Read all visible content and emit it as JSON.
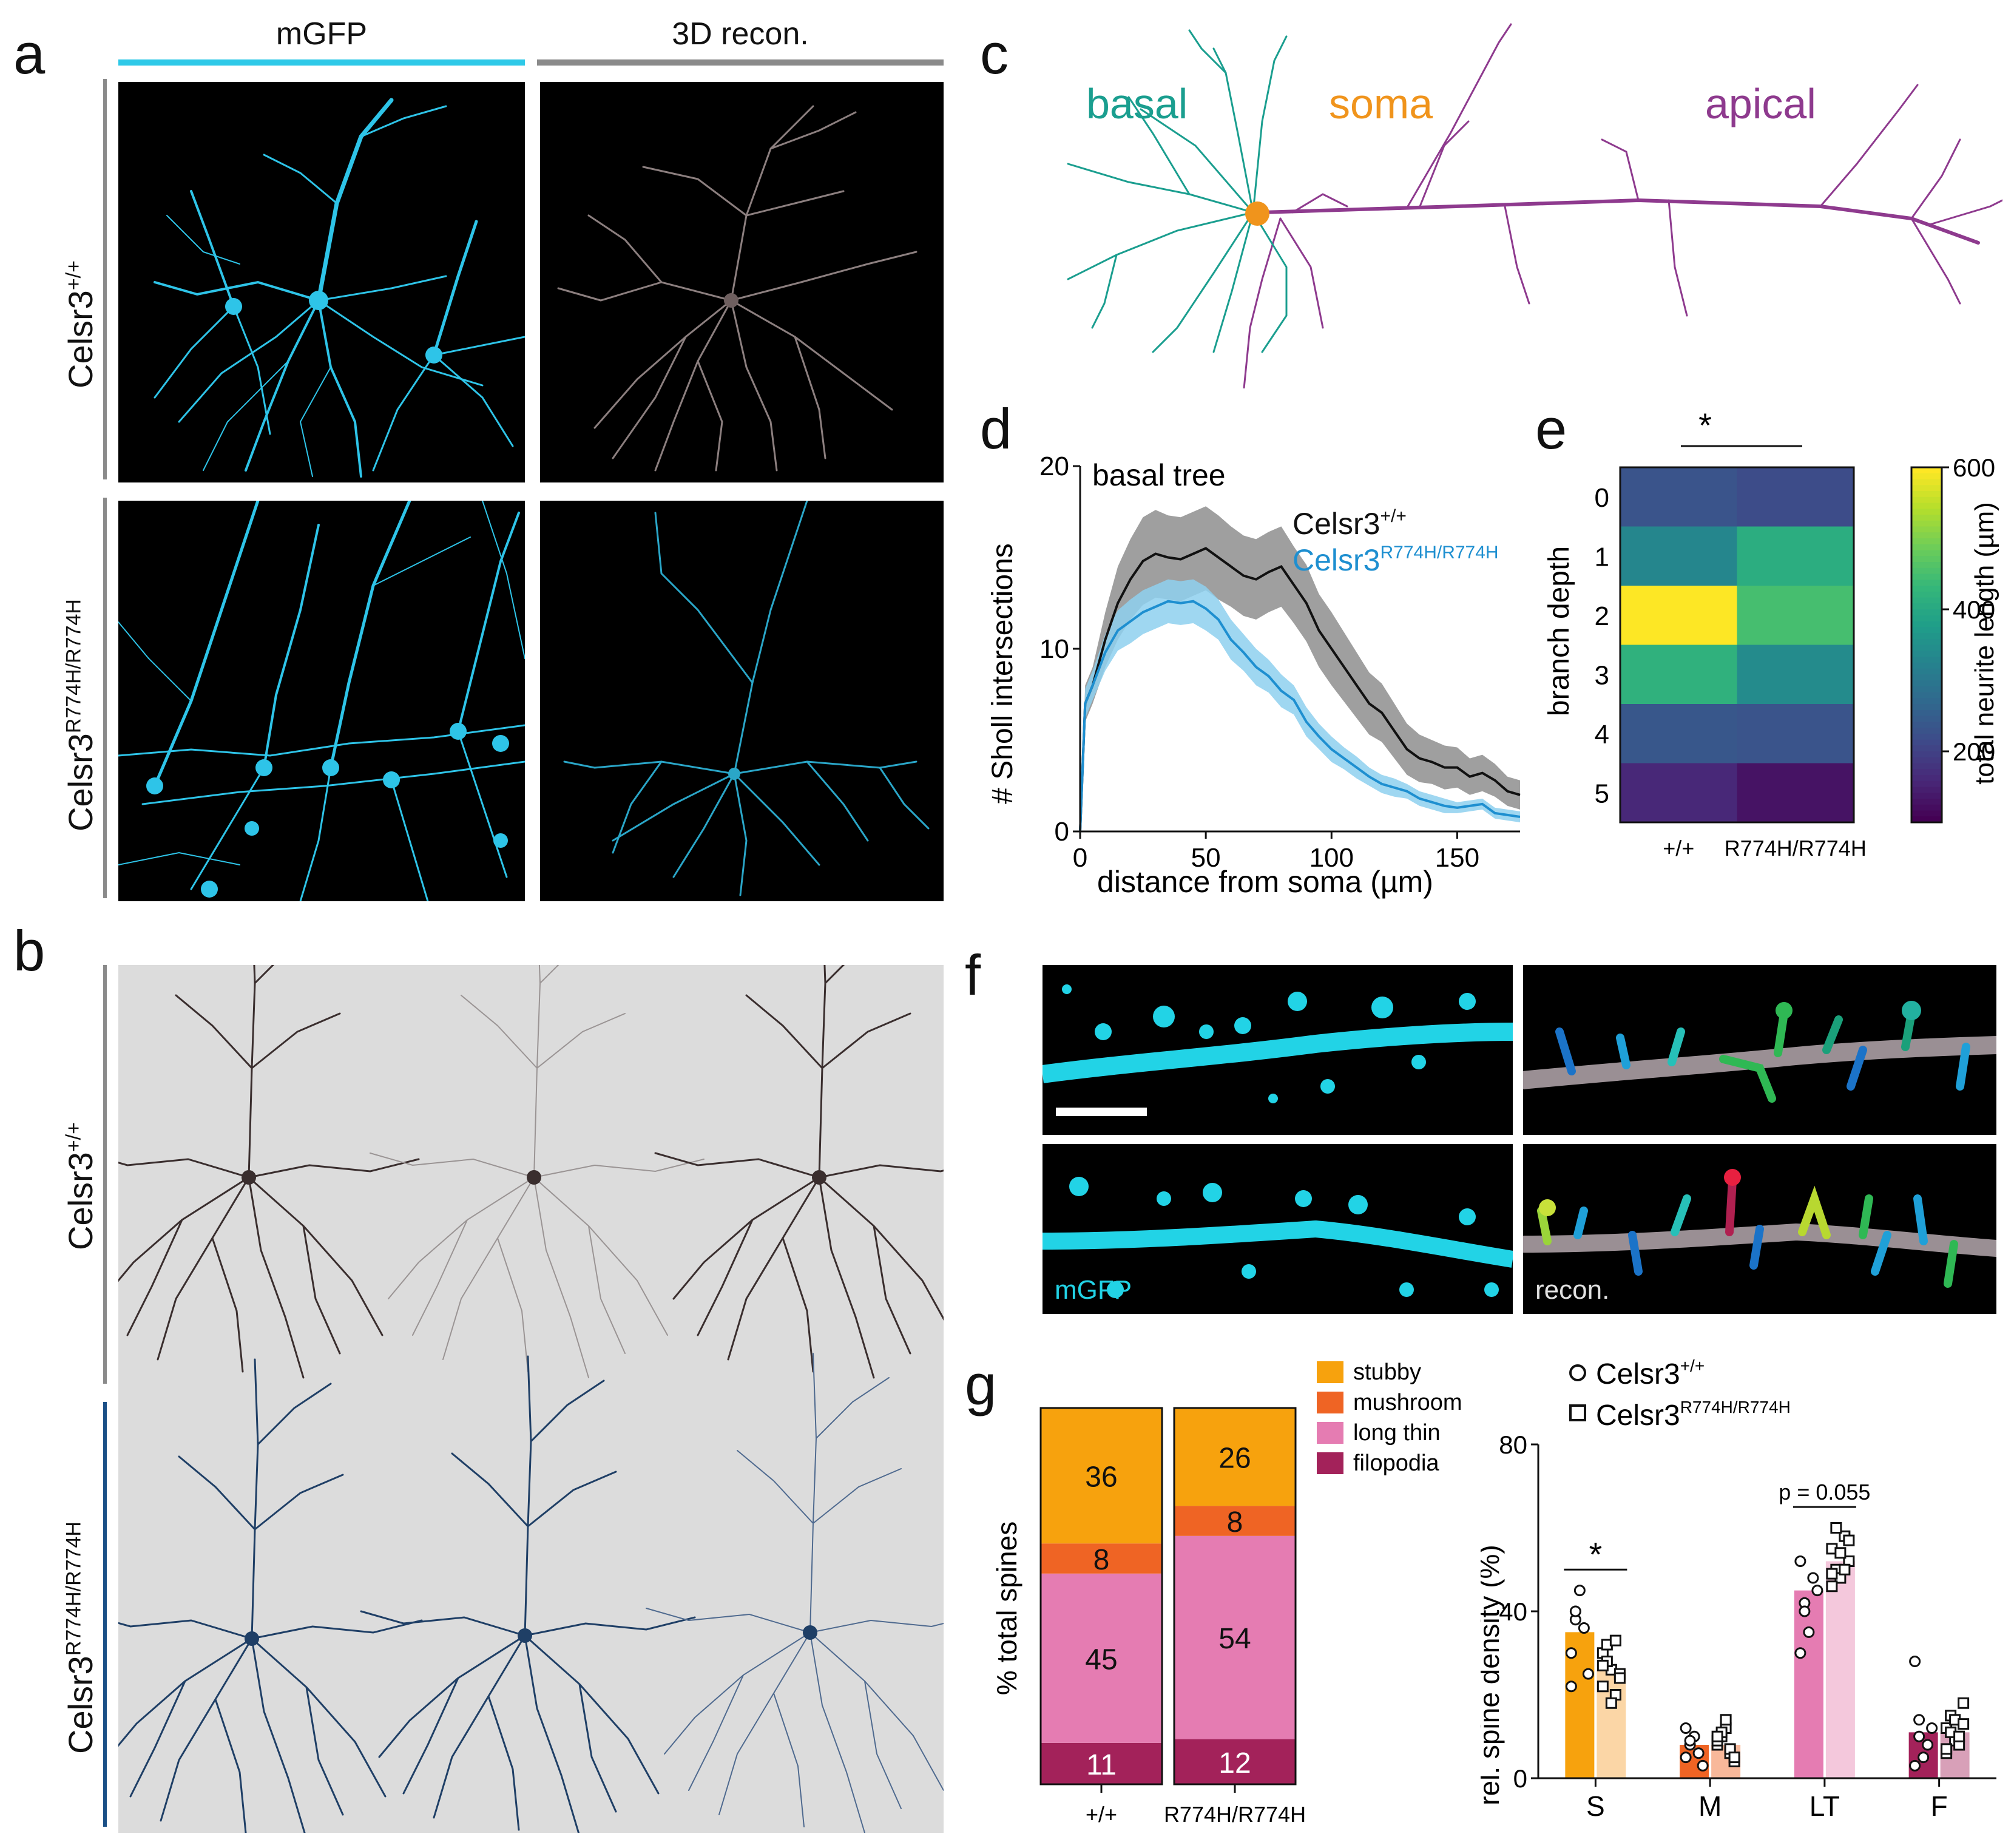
{
  "panel_letters": {
    "a": "a",
    "b": "b",
    "c": "c",
    "d": "d",
    "e": "e",
    "f": "f",
    "g": "g"
  },
  "panel_a": {
    "col_headers": [
      "mGFP",
      "3D recon."
    ],
    "row_labels": [
      {
        "base": "Celsr3",
        "sup": "+/+"
      },
      {
        "base": "Celsr3",
        "sup": "R774H/R774H"
      }
    ],
    "colors": {
      "mgfp": "#2ec4e8",
      "recon_wt": "#8c7f7f",
      "recon_mut": "#2aa6c8",
      "header_cyan": "#2ec9e8",
      "header_grey": "#8a8a8a"
    }
  },
  "panel_b": {
    "row_labels": [
      {
        "base": "Celsr3",
        "sup": "+/+"
      },
      {
        "base": "Celsr3",
        "sup": "R774H/R774H"
      }
    ],
    "colors": {
      "bg": "#dcdcdc",
      "wt": "#3a2e2e",
      "mut": "#1f3f66",
      "bar_wt": "#8a8a8a",
      "bar_mut": "#1a4f86"
    }
  },
  "panel_c": {
    "labels": {
      "basal": "basal",
      "soma": "soma",
      "apical": "apical"
    },
    "colors": {
      "basal": "#1a9e8f",
      "soma": "#f0941c",
      "apical": "#8e3a8e"
    }
  },
  "panel_f": {
    "labels": {
      "mgfp": "mGFP",
      "recon": "recon."
    }
  },
  "chart_data": [
    {
      "id": "d",
      "type": "line",
      "title": "basal tree",
      "xlabel": "distance from soma (µm)",
      "ylabel": "# Sholl intersections",
      "xlim": [
        0,
        175
      ],
      "ylim": [
        0,
        20
      ],
      "xticks": [
        0,
        50,
        100,
        150
      ],
      "yticks": [
        0,
        10,
        20
      ],
      "series": [
        {
          "name_base": "Celsr3",
          "name_sup": "+/+",
          "color": "#111111",
          "band": "#8e8e8e",
          "x": [
            0,
            2,
            5,
            10,
            15,
            20,
            25,
            30,
            35,
            40,
            45,
            50,
            55,
            60,
            65,
            70,
            75,
            80,
            85,
            90,
            95,
            100,
            105,
            110,
            115,
            120,
            125,
            130,
            135,
            140,
            145,
            150,
            155,
            160,
            165,
            170,
            175
          ],
          "y": [
            0,
            7,
            8,
            10.5,
            12.5,
            13.8,
            14.8,
            15.2,
            15.0,
            14.9,
            15.2,
            15.5,
            15.0,
            14.5,
            14.0,
            13.8,
            14.2,
            14.5,
            13.5,
            12.5,
            11.0,
            10.0,
            9.0,
            8.0,
            7.0,
            6.5,
            5.5,
            4.5,
            4.0,
            3.8,
            3.5,
            3.5,
            3.0,
            3.2,
            2.8,
            2.2,
            2.0
          ],
          "err": [
            0,
            1,
            1,
            1.5,
            2,
            2.2,
            2.4,
            2.4,
            2.3,
            2.3,
            2.3,
            2.3,
            2.3,
            2.2,
            2.2,
            2.2,
            2.2,
            2.2,
            2.1,
            2.1,
            2.0,
            2.0,
            1.9,
            1.8,
            1.7,
            1.6,
            1.5,
            1.4,
            1.3,
            1.2,
            1.2,
            1.1,
            1.0,
            1.0,
            0.9,
            0.8,
            0.8
          ]
        },
        {
          "name_base": "Celsr3",
          "name_sup": "R774H/R774H",
          "color": "#1e8fd0",
          "band": "#8ed0ee",
          "x": [
            0,
            2,
            5,
            10,
            15,
            20,
            25,
            30,
            35,
            40,
            45,
            50,
            55,
            60,
            65,
            70,
            75,
            80,
            85,
            90,
            95,
            100,
            105,
            110,
            115,
            120,
            125,
            130,
            135,
            140,
            145,
            150,
            155,
            160,
            165,
            170,
            175
          ],
          "y": [
            0,
            7,
            8,
            9.8,
            11.0,
            11.5,
            12.0,
            12.3,
            12.6,
            12.5,
            12.6,
            12.2,
            11.6,
            10.5,
            9.8,
            9.0,
            8.5,
            7.7,
            7.2,
            6.0,
            5.2,
            4.5,
            4.0,
            3.5,
            3.0,
            2.6,
            2.4,
            2.2,
            1.8,
            1.6,
            1.4,
            1.3,
            1.4,
            1.5,
            1.0,
            0.9,
            0.8
          ],
          "err": [
            0,
            0.8,
            0.8,
            1.0,
            1.1,
            1.2,
            1.2,
            1.2,
            1.2,
            1.2,
            1.2,
            1.2,
            1.1,
            1.1,
            1.0,
            1.0,
            0.9,
            0.9,
            0.8,
            0.8,
            0.7,
            0.7,
            0.6,
            0.6,
            0.5,
            0.5,
            0.5,
            0.4,
            0.4,
            0.4,
            0.4,
            0.3,
            0.3,
            0.3,
            0.3,
            0.3,
            0.3
          ]
        }
      ]
    },
    {
      "id": "e",
      "type": "heatmap",
      "ylabel": "branch depth",
      "categories": [
        "+/+",
        "R774H/R774H"
      ],
      "rows": [
        "0",
        "1",
        "2",
        "3",
        "4",
        "5"
      ],
      "values": [
        [
          230,
          215
        ],
        [
          330,
          410
        ],
        [
          600,
          450
        ],
        [
          420,
          340
        ],
        [
          235,
          230
        ],
        [
          155,
          125
        ]
      ],
      "colorbar": {
        "label": "total neurite length (µm)",
        "range": [
          100,
          600
        ],
        "ticks": [
          200,
          400,
          600
        ]
      },
      "annotation": "*"
    },
    {
      "id": "g1",
      "type": "bar",
      "stacked": true,
      "ylabel": "% total spines",
      "categories": [
        "+/+",
        "R774H/R774H"
      ],
      "series": [
        {
          "name": "filopodia",
          "color": "#a3225a",
          "values": [
            11,
            12
          ]
        },
        {
          "name": "long thin",
          "color": "#e57cb2",
          "values": [
            45,
            54
          ]
        },
        {
          "name": "mushroom",
          "color": "#ef6424",
          "values": [
            8,
            8
          ]
        },
        {
          "name": "stubby",
          "color": "#f7a20d",
          "values": [
            36,
            26
          ]
        }
      ],
      "legend_order": [
        "stubby",
        "mushroom",
        "long thin",
        "filopodia"
      ]
    },
    {
      "id": "g2",
      "type": "bar",
      "ylabel": "rel. spine density (%)",
      "categories": [
        "S",
        "M",
        "LT",
        "F"
      ],
      "ylim": [
        0,
        80
      ],
      "yticks": [
        0,
        40,
        80
      ],
      "legend": [
        {
          "base": "Celsr3",
          "sup": "+/+",
          "marker": "circle"
        },
        {
          "base": "Celsr3",
          "sup": "R774H/R774H",
          "marker": "square"
        }
      ],
      "series": [
        {
          "name": "Celsr3+/+",
          "colors": [
            "#f7a20d",
            "#ef6424",
            "#e57cb2",
            "#a3225a"
          ],
          "values": [
            35,
            8,
            45,
            11
          ],
          "points": [
            [
              30,
              38,
              45,
              36,
              25,
              22,
              40
            ],
            [
              5,
              8,
              10,
              6,
              3,
              12,
              9
            ],
            [
              52,
              42,
              35,
              48,
              45,
              30,
              40
            ],
            [
              28,
              10,
              5,
              8,
              12,
              3,
              14
            ]
          ]
        },
        {
          "name": "Celsr3R774H/R774H",
          "colors": [
            "#fbd6a6",
            "#f8b89a",
            "#f4c8dc",
            "#d8a0b8"
          ],
          "values": [
            26,
            8,
            52,
            11
          ],
          "points": [
            [
              30,
              32,
              26,
              20,
              25,
              22,
              28,
              18,
              33,
              24,
              27
            ],
            [
              8,
              10,
              12,
              6,
              4,
              9,
              11,
              14,
              7,
              5,
              10
            ],
            [
              55,
              50,
              48,
              58,
              52,
              46,
              60,
              54,
              50,
              57,
              49
            ],
            [
              12,
              15,
              9,
              8,
              18,
              6,
              11,
              14,
              10,
              13,
              7
            ]
          ]
        }
      ],
      "annotations": [
        {
          "group": "S",
          "text": "*"
        },
        {
          "group": "LT",
          "text": "p = 0.055"
        }
      ]
    }
  ]
}
